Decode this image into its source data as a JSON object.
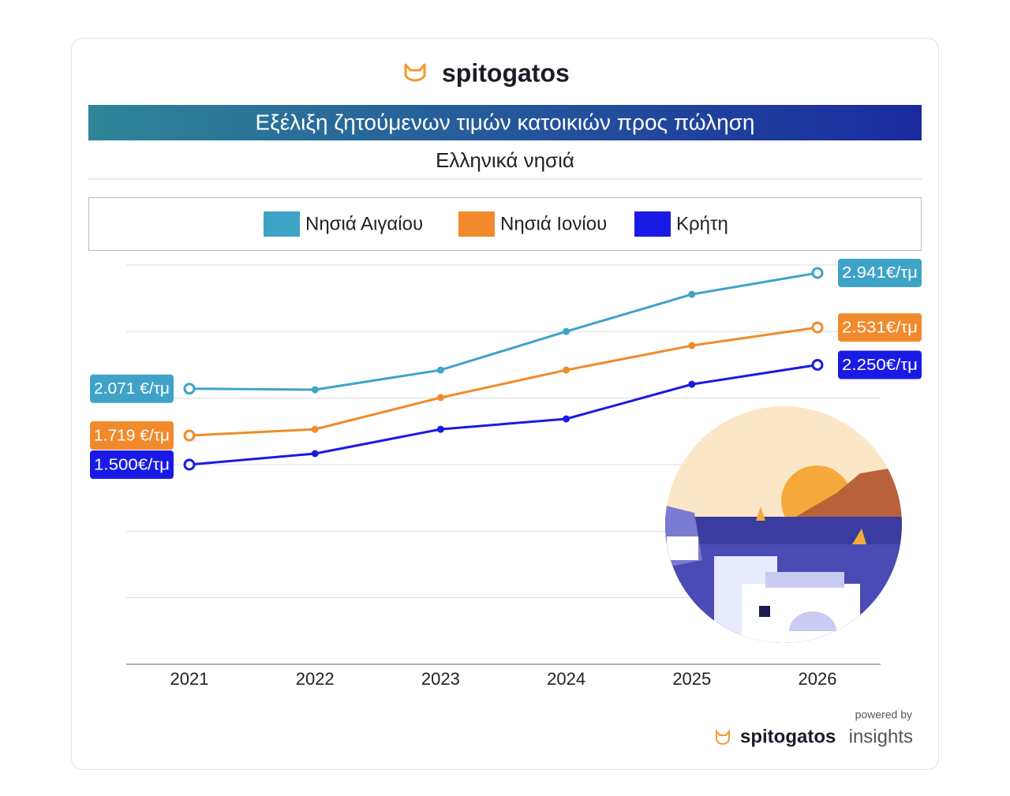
{
  "header": {
    "brand": "spitogatos"
  },
  "chart_data": {
    "type": "line",
    "title": "Εξέλιξη ζητούμενων τιμών κατοικιών προς πώληση",
    "subtitle": "Ελληνικά νησιά",
    "categories": [
      "2021",
      "2022",
      "2023",
      "2024",
      "2025",
      "2026"
    ],
    "series": [
      {
        "name": "Νησιά Αιγαίου",
        "color": "#3fa3c8",
        "values": [
          2071,
          2063,
          2211,
          2501,
          2780,
          2941
        ],
        "value_labels": [
          "2.071 €/τμ",
          null,
          null,
          null,
          null,
          "2.941€/τμ"
        ]
      },
      {
        "name": "Νησιά Ιονίου",
        "color": "#f08a2c",
        "values": [
          1719,
          1766,
          2004,
          2211,
          2395,
          2531
        ],
        "value_labels": [
          "1.719 €/τμ",
          null,
          null,
          null,
          null,
          "2.531€/τμ"
        ]
      },
      {
        "name": "Κρήτη",
        "color": "#1a1ae6",
        "values": [
          1500,
          1583,
          1766,
          1844,
          2104,
          2250
        ],
        "value_labels": [
          "1.500€/τμ",
          null,
          null,
          null,
          null,
          "2.250€/τμ"
        ]
      }
    ],
    "ylim": [
      0,
      3000
    ],
    "yticks": [
      0,
      500,
      1000,
      1500,
      2000,
      2500,
      3000
    ],
    "grid": true
  },
  "footer": {
    "powered_by": "powered by",
    "brand": "spitogatos",
    "product": "insights"
  }
}
